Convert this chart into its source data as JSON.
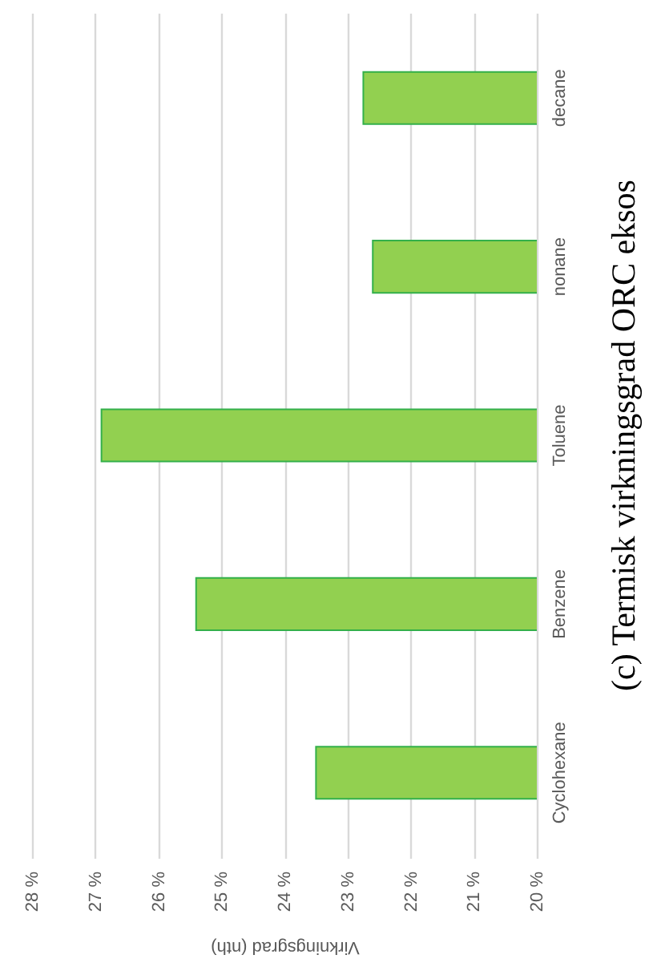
{
  "chart_data": {
    "type": "bar",
    "orientation": "horizontal",
    "title": "(c) Termisk virkningsgrad ORC eksos",
    "xlabel": "Virkningsgrad (nth)",
    "categories": [
      "decane",
      "nonane",
      "Toluene",
      "Benzene",
      "Cyclohexane"
    ],
    "values": [
      22.75,
      22.6,
      26.9,
      25.4,
      23.5
    ],
    "color": "#92d050",
    "xlim": [
      28,
      20
    ],
    "xticks": [
      {
        "value": 28,
        "label": "28 %"
      },
      {
        "value": 27,
        "label": "27 %"
      },
      {
        "value": 26,
        "label": "26 %"
      },
      {
        "value": 25,
        "label": "25 %"
      },
      {
        "value": 24,
        "label": "24 %"
      },
      {
        "value": 23,
        "label": "23 %"
      },
      {
        "value": 22,
        "label": "22 %"
      },
      {
        "value": 21,
        "label": "21 %"
      },
      {
        "value": 20,
        "label": "20 %"
      }
    ],
    "grid": "x"
  }
}
